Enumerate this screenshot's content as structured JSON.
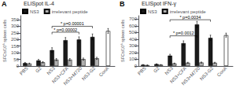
{
  "chart_data": [
    {
      "type": "bar",
      "panel_label": "A",
      "title": "ELISpot IL-4",
      "ylabel": "SFCs/10⁶ spleen cells",
      "categories": [
        "PBS",
        "G2",
        "NS3",
        "NS3+CFA",
        "NS3+M720",
        "NS3-G2",
        "ConA"
      ],
      "series": [
        {
          "name": "NS3",
          "color": "#1a1a1a",
          "colors": [
            "#1a1a1a",
            "#1a1a1a",
            "#1a1a1a",
            "#1a1a1a",
            "#1a1a1a",
            "#1a1a1a",
            "#ffffff"
          ],
          "values": [
            22,
            42,
            120,
            195,
            200,
            220,
            265
          ],
          "errors": [
            5,
            8,
            18,
            20,
            20,
            22,
            18
          ]
        },
        {
          "name": "irrelevant peptide",
          "color": "#b0b0b0",
          "values": [
            18,
            28,
            48,
            48,
            52,
            58,
            null
          ],
          "errors": [
            4,
            5,
            8,
            8,
            8,
            8,
            null
          ]
        }
      ],
      "annotations": [
        {
          "text": "* p=0.00002",
          "from": "NS3",
          "to": "NS3+M720",
          "y": 240
        },
        {
          "text": "* p=0.00001",
          "from": "NS3",
          "to": "NS3-G2",
          "y": 285
        }
      ],
      "ylim": [
        0,
        380
      ],
      "yticks": [
        0,
        50,
        100,
        150,
        200,
        250,
        300,
        350
      ],
      "grid": false,
      "legend": "upper left"
    },
    {
      "type": "bar",
      "panel_label": "B",
      "title": "ELISpot IFN-γ",
      "ylabel": "SFCs/10⁶ spleen cells",
      "categories": [
        "PBS",
        "G2",
        "NS3",
        "NS3+CFA",
        "NS3+M720",
        "NS3-G2",
        "ConA"
      ],
      "series": [
        {
          "name": "NS3",
          "color": "#1a1a1a",
          "colors": [
            "#1a1a1a",
            "#1a1a1a",
            "#1a1a1a",
            "#1a1a1a",
            "#1a1a1a",
            "#1a1a1a",
            "#ffffff"
          ],
          "values": [
            18,
            28,
            155,
            340,
            620,
            420,
            460
          ],
          "errors": [
            4,
            5,
            20,
            35,
            45,
            40,
            30
          ]
        },
        {
          "name": "irrelevant peptide",
          "color": "#b0b0b0",
          "values": [
            12,
            18,
            38,
            48,
            52,
            48,
            null
          ],
          "errors": [
            3,
            4,
            6,
            8,
            8,
            8,
            null
          ]
        }
      ],
      "annotations": [
        {
          "text": "* p=0.0012",
          "from": "NS3",
          "to": "NS3+M720",
          "y": 420
        },
        {
          "text": "* p=0.0034",
          "from": "NS3",
          "to": "NS3-G2",
          "y": 660
        }
      ],
      "ylim": [
        0,
        750
      ],
      "yticks": [
        0,
        100,
        200,
        300,
        400,
        500,
        600,
        700
      ],
      "grid": false,
      "legend": "upper left"
    }
  ]
}
